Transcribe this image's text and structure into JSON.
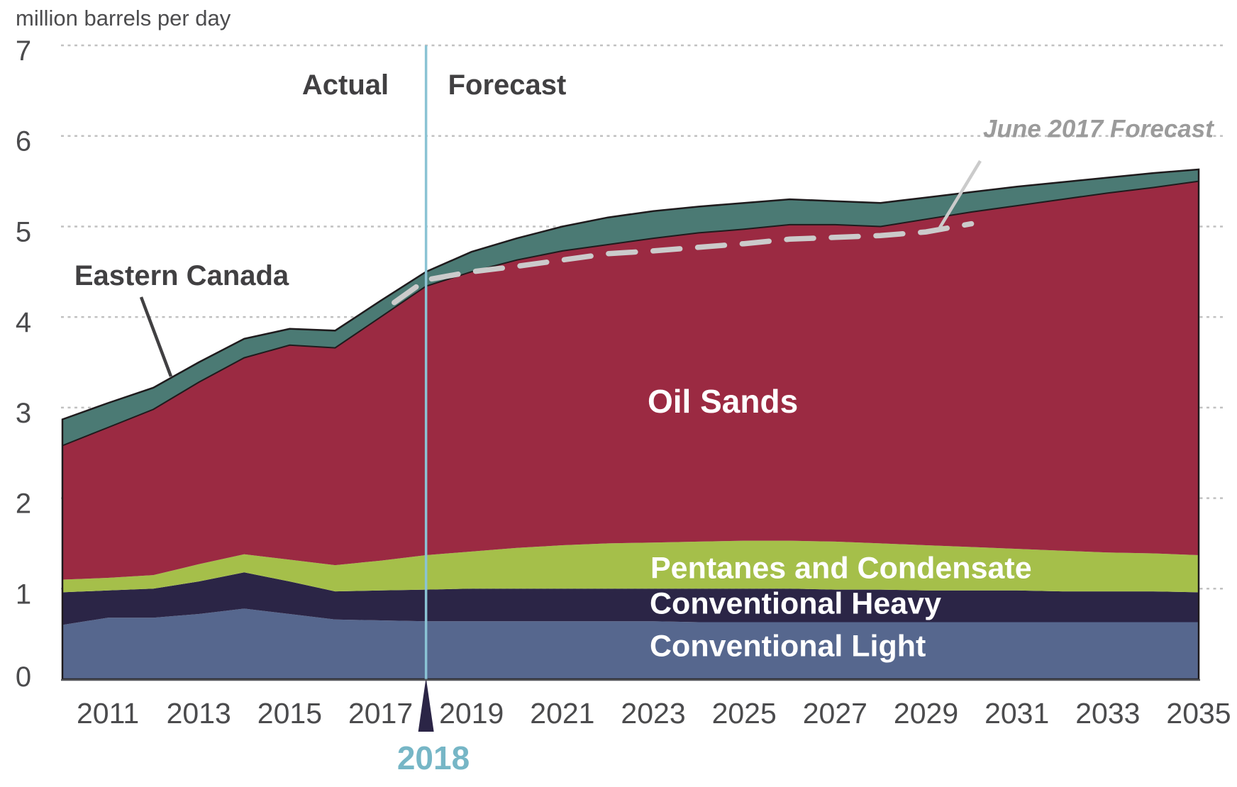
{
  "chart_data": {
    "type": "stacked_area",
    "title": "million barrels per day",
    "xlim": [
      2010,
      2035
    ],
    "ylim": [
      0,
      7
    ],
    "grid": "dotted horizontal",
    "legend_position": "labels-on-areas",
    "x": [
      2010,
      2011,
      2012,
      2013,
      2014,
      2015,
      2016,
      2017,
      2018,
      2019,
      2020,
      2021,
      2022,
      2023,
      2024,
      2025,
      2026,
      2027,
      2028,
      2029,
      2030,
      2031,
      2032,
      2033,
      2034,
      2035
    ],
    "x_tick_labels": [
      "2011",
      "2013",
      "2015",
      "2017",
      "2019",
      "2021",
      "2023",
      "2025",
      "2027",
      "2029",
      "2031",
      "2033",
      "2035"
    ],
    "y_ticks": [
      0,
      1,
      2,
      3,
      4,
      5,
      6,
      7
    ],
    "y_tick_labels": [
      "0",
      "1",
      "2",
      "3",
      "4",
      "5",
      "6",
      "7"
    ],
    "series": [
      {
        "name": "Conventional Light",
        "color": "#56678e",
        "values": [
          0.6,
          0.68,
          0.68,
          0.72,
          0.78,
          0.72,
          0.66,
          0.65,
          0.64,
          0.64,
          0.64,
          0.64,
          0.64,
          0.64,
          0.63,
          0.63,
          0.63,
          0.63,
          0.63,
          0.63,
          0.63,
          0.63,
          0.63,
          0.63,
          0.63,
          0.63
        ]
      },
      {
        "name": "Conventional Heavy",
        "color": "#2b2546",
        "values": [
          0.36,
          0.3,
          0.32,
          0.36,
          0.4,
          0.36,
          0.31,
          0.33,
          0.35,
          0.36,
          0.36,
          0.36,
          0.36,
          0.36,
          0.37,
          0.37,
          0.37,
          0.36,
          0.36,
          0.35,
          0.35,
          0.35,
          0.34,
          0.34,
          0.34,
          0.33
        ]
      },
      {
        "name": "Pentanes and Condensate",
        "color": "#a5bf4a",
        "values": [
          0.14,
          0.14,
          0.15,
          0.19,
          0.2,
          0.24,
          0.29,
          0.33,
          0.38,
          0.41,
          0.45,
          0.48,
          0.5,
          0.51,
          0.52,
          0.53,
          0.53,
          0.53,
          0.51,
          0.5,
          0.48,
          0.46,
          0.45,
          0.43,
          0.42,
          0.41
        ]
      },
      {
        "name": "Oil Sands",
        "color": "#9b2a42",
        "values": [
          1.48,
          1.66,
          1.83,
          2.01,
          2.17,
          2.37,
          2.4,
          2.69,
          2.97,
          3.09,
          3.18,
          3.25,
          3.3,
          3.36,
          3.41,
          3.44,
          3.49,
          3.5,
          3.5,
          3.6,
          3.7,
          3.79,
          3.88,
          3.97,
          4.04,
          4.13
        ]
      },
      {
        "name": "Eastern Canada",
        "color": "#4b7a74",
        "values": [
          0.29,
          0.27,
          0.24,
          0.22,
          0.21,
          0.18,
          0.19,
          0.18,
          0.16,
          0.22,
          0.24,
          0.27,
          0.3,
          0.3,
          0.29,
          0.29,
          0.28,
          0.26,
          0.26,
          0.24,
          0.22,
          0.21,
          0.19,
          0.17,
          0.16,
          0.13
        ]
      }
    ],
    "overlay_line": {
      "name": "June 2017 Forecast",
      "style": "dashed",
      "color": "#cbcbcb",
      "x": [
        2017.3,
        2018,
        2019,
        2020,
        2021,
        2022,
        2023,
        2024,
        2025,
        2026,
        2027,
        2028,
        2029,
        2030
      ],
      "values": [
        4.16,
        4.41,
        4.5,
        4.56,
        4.63,
        4.7,
        4.73,
        4.77,
        4.81,
        4.86,
        4.88,
        4.9,
        4.94,
        5.03
      ]
    },
    "divider": {
      "year": 2018,
      "label": "2018",
      "left_label": "Actual",
      "right_label": "Forecast",
      "line_color": "#8ac3d4",
      "label_color": "#76b6c6",
      "marker_color": "#2b2546"
    },
    "colors": {
      "grid": "#c1c1c1",
      "axis_text": "#4b4b4d",
      "outline": "#1f1b1d",
      "annotation_text": "#414042",
      "june_text": "#9b9b9b",
      "background": "#ffffff"
    }
  }
}
